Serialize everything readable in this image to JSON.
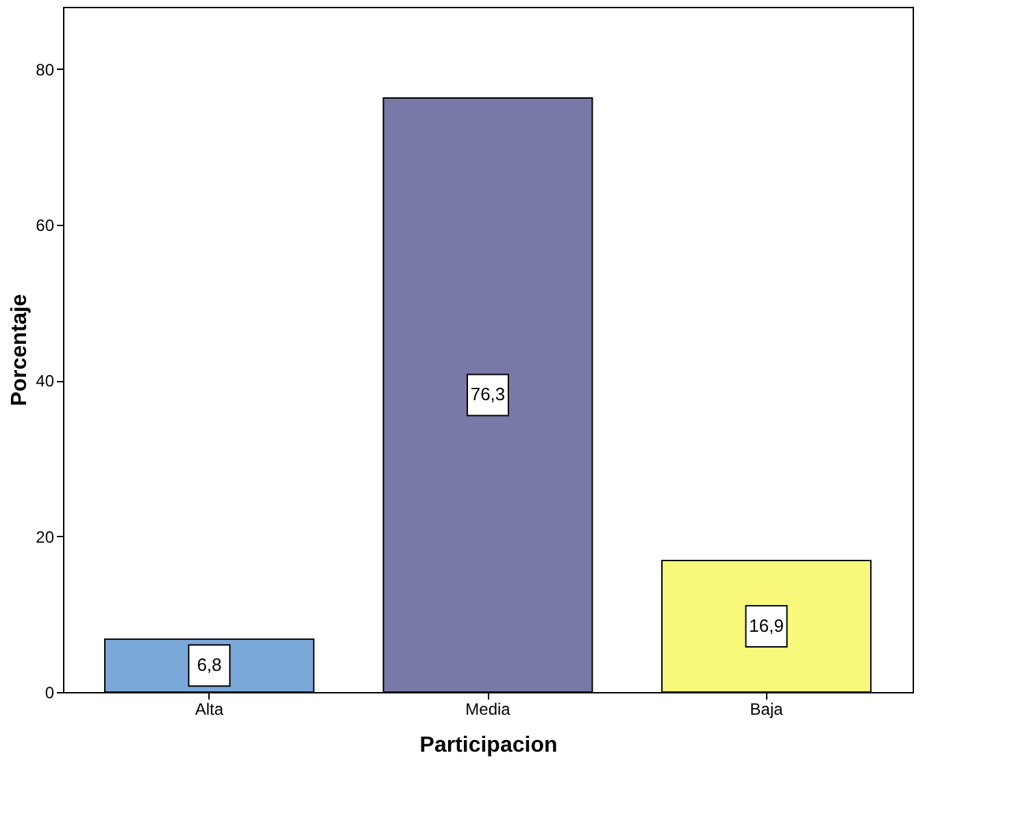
{
  "chart_data": {
    "type": "bar",
    "xlabel": "Participacion",
    "ylabel": "Porcentaje",
    "categories": [
      "Alta",
      "Media",
      "Baja"
    ],
    "values": [
      6.8,
      76.3,
      16.9
    ],
    "colors": [
      "#7aa8d8",
      "#7979a8",
      "#f8f87a"
    ],
    "value_labels": [
      "6,8",
      "76,3",
      "16,9"
    ],
    "ylim": [
      0,
      88
    ],
    "yticks": [
      0,
      20,
      40,
      60,
      80
    ],
    "grid": false
  }
}
